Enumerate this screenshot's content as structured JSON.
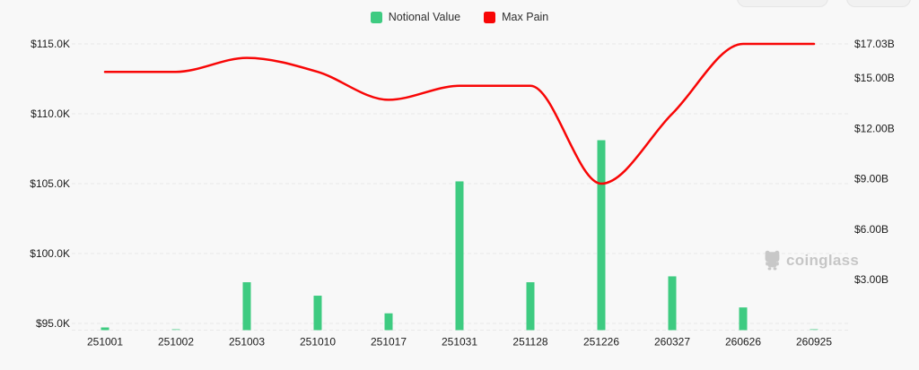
{
  "legend": {
    "items": [
      {
        "label": "Notional Value",
        "color": "#3ecb81"
      },
      {
        "label": "Max Pain",
        "color": "#f80606"
      }
    ]
  },
  "watermark": {
    "text": "coinglass",
    "icon": "coinglass-mascot-icon"
  },
  "chart_data": {
    "type": "bar+line",
    "title": "",
    "categories": [
      "251001",
      "251002",
      "251003",
      "251010",
      "251017",
      "251031",
      "251128",
      "251226",
      "260327",
      "260626",
      "260925"
    ],
    "series": [
      {
        "name": "Notional Value",
        "type": "bar",
        "y_axis": "right",
        "color": "#3ecb81",
        "unit": "billions USD",
        "values": [
          0.16,
          0.08,
          2.85,
          2.05,
          1.0,
          8.85,
          2.85,
          11.3,
          3.2,
          1.35,
          0.08
        ],
        "bar_opacity": [
          1,
          0.45,
          1,
          1,
          1,
          1,
          1,
          1,
          1,
          1,
          0.45
        ]
      },
      {
        "name": "Max Pain",
        "type": "line",
        "y_axis": "left",
        "color": "#f80606",
        "unit": "USD",
        "smooth": true,
        "values": [
          113000,
          113000,
          114000,
          113000,
          111000,
          112000,
          112000,
          105000,
          110000,
          115000,
          115000
        ]
      }
    ],
    "left_axis": {
      "tick_labels": [
        "$95.0K",
        "$100.0K",
        "$105.0K",
        "$110.0K",
        "$115.0K"
      ],
      "tick_values": [
        95000,
        100000,
        105000,
        110000,
        115000
      ]
    },
    "right_axis": {
      "tick_labels": [
        "$3.00B",
        "$6.00B",
        "$9.00B",
        "$12.00B",
        "$15.00B",
        "$17.03B"
      ],
      "tick_values": [
        3,
        6,
        9,
        12,
        15,
        17.03
      ],
      "max": 17.03
    },
    "grid": "dashed horizontal",
    "legend_position": "top-center",
    "text_color": "#1b1b1b",
    "grid_color": "#e9e9e9",
    "background": "#f8f8f8"
  }
}
